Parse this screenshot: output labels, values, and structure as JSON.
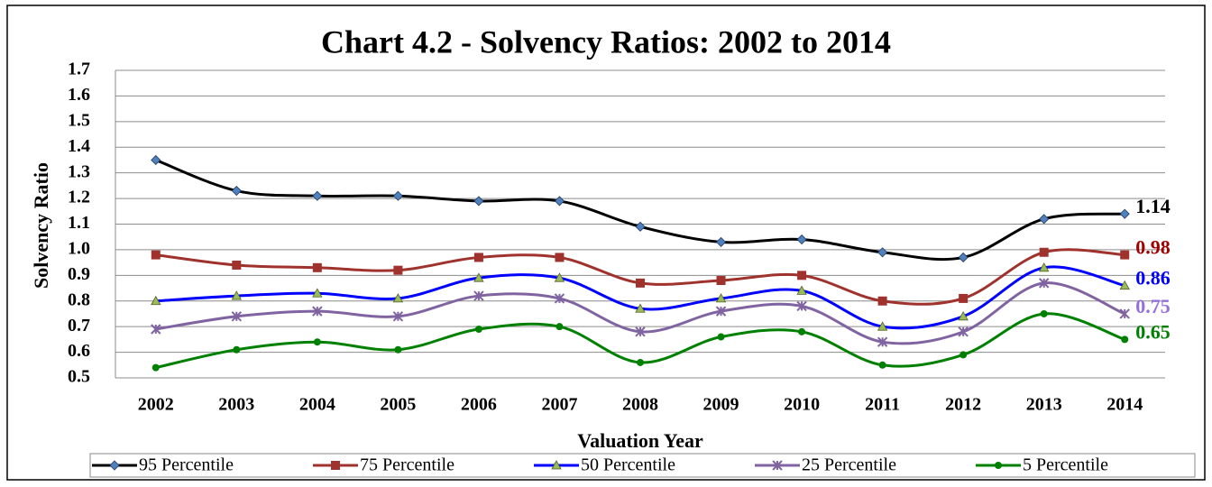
{
  "chart_data": {
    "type": "line",
    "title": "Chart 4.2 - Solvency Ratios: 2002 to 2014",
    "x_label": "Valuation Year",
    "y_label": "Solvency Ratio",
    "categories": [
      "2002",
      "2003",
      "2004",
      "2005",
      "2006",
      "2007",
      "2008",
      "2009",
      "2010",
      "2011",
      "2012",
      "2013",
      "2014"
    ],
    "series": [
      {
        "name": "95 Percentile",
        "color": "#000000",
        "marker_color": "#4f81bd",
        "marker": "diamond",
        "values": [
          1.35,
          1.23,
          1.21,
          1.21,
          1.19,
          1.19,
          1.09,
          1.03,
          1.04,
          0.99,
          0.97,
          1.12,
          1.14
        ]
      },
      {
        "name": "75 Percentile",
        "color": "#a0322d",
        "marker_color": "#a0322d",
        "marker": "square",
        "values": [
          0.98,
          0.94,
          0.93,
          0.92,
          0.97,
          0.97,
          0.87,
          0.88,
          0.9,
          0.8,
          0.81,
          0.99,
          0.98
        ]
      },
      {
        "name": "50 Percentile",
        "color": "#0000ff",
        "marker_color": "#9bbb59",
        "marker": "triangle",
        "values": [
          0.8,
          0.82,
          0.83,
          0.81,
          0.89,
          0.89,
          0.77,
          0.81,
          0.84,
          0.7,
          0.74,
          0.93,
          0.86
        ]
      },
      {
        "name": "25 Percentile",
        "color": "#8064a2",
        "marker_color": "#8064a2",
        "marker": "star",
        "values": [
          0.69,
          0.74,
          0.76,
          0.74,
          0.82,
          0.81,
          0.68,
          0.76,
          0.78,
          0.64,
          0.68,
          0.87,
          0.75
        ]
      },
      {
        "name": "5 Percentile",
        "color": "#008000",
        "marker_color": "#008000",
        "marker": "circle",
        "values": [
          0.54,
          0.61,
          0.64,
          0.61,
          0.69,
          0.7,
          0.56,
          0.66,
          0.68,
          0.55,
          0.59,
          0.75,
          0.65
        ]
      }
    ],
    "end_label_colors": [
      "#000000",
      "#a00000",
      "#0000ff",
      "#9370db",
      "#008000"
    ],
    "ylim": [
      0.5,
      1.7
    ],
    "yticks": [
      0.5,
      0.6,
      0.7,
      0.8,
      0.9,
      {
        "value": 1.0,
        "label": "1.0"
      },
      1.1,
      1.2,
      1.3,
      1.4,
      1.5,
      1.6,
      1.7
    ],
    "grid": true,
    "smooth": true,
    "legend": "bottom"
  }
}
